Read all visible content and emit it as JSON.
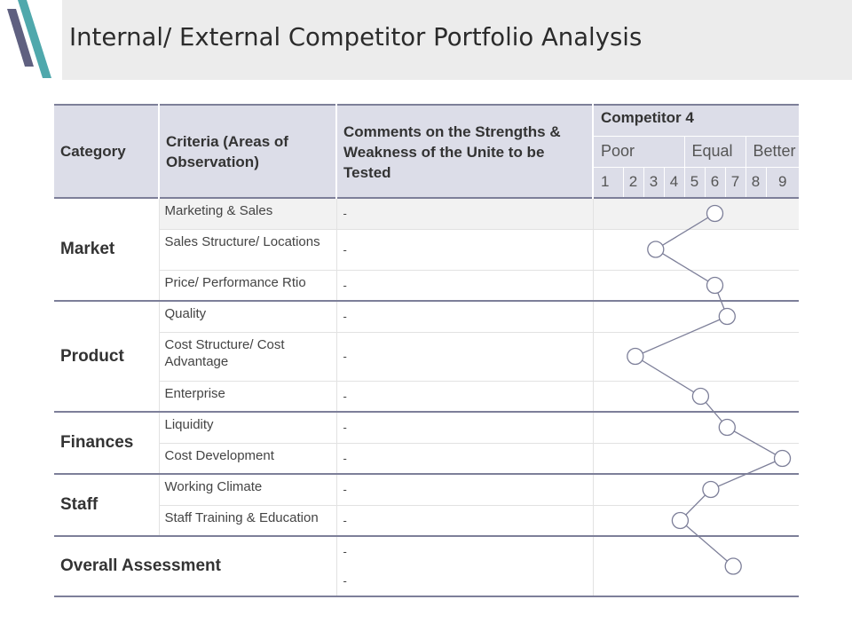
{
  "title": "Internal/ External Competitor Portfolio Analysis",
  "table": {
    "headers": {
      "category": "Category",
      "criteria": "Criteria (Areas of Observation)",
      "comments": "Comments on the Strengths & Weakness of the Unite to be Tested",
      "competitor": "Competitor 4",
      "levels": [
        "Poor",
        "Equal",
        "Better"
      ],
      "scale": [
        "1",
        "2",
        "3",
        "4",
        "5",
        "6",
        "7",
        "8",
        "9"
      ]
    },
    "categories": {
      "market": "Market",
      "product": "Product",
      "finances": "Finances",
      "staff": "Staff",
      "overall": "Overall Assessment"
    },
    "rows": [
      {
        "criteria": "Marketing & Sales",
        "comment": "-"
      },
      {
        "criteria": "Sales Structure/ Locations",
        "comment": "-"
      },
      {
        "criteria": "Price/ Performance Rtio",
        "comment": "-"
      },
      {
        "criteria": "Quality",
        "comment": "-"
      },
      {
        "criteria": "Cost Structure/ Cost Advantage",
        "comment": "-"
      },
      {
        "criteria": "Enterprise",
        "comment": "-"
      },
      {
        "criteria": "Liquidity",
        "comment": "-"
      },
      {
        "criteria": "Cost Development",
        "comment": "-"
      },
      {
        "criteria": "Working Climate",
        "comment": "-"
      },
      {
        "criteria": "Staff Training & Education",
        "comment": "-"
      }
    ],
    "overall_comments": [
      "-",
      "-"
    ]
  },
  "chart_data": {
    "type": "line",
    "x": [
      "Marketing & Sales",
      "Sales Structure/ Locations",
      "Price/ Performance Rtio",
      "Quality",
      "Cost Structure/ Cost Advantage",
      "Enterprise",
      "Liquidity",
      "Cost Development",
      "Working Climate",
      "Staff Training & Education",
      "Overall Assessment"
    ],
    "series": [
      {
        "values": [
          6.0,
          3.1,
          6.0,
          6.6,
          2.1,
          5.3,
          6.6,
          9.3,
          5.8,
          4.3,
          6.9
        ]
      }
    ],
    "ylim": [
      1,
      9
    ],
    "color": "#7d7f99"
  }
}
